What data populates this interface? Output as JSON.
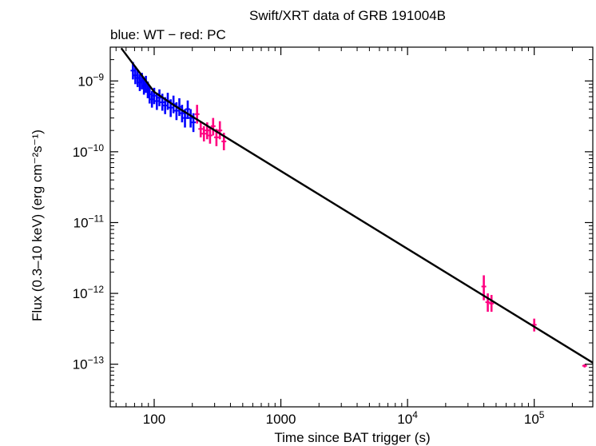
{
  "chart_data": {
    "type": "scatter",
    "title": "Swift/XRT data of GRB 191004B",
    "subtitle": "blue: WT − red: PC",
    "xlabel": "Time since BAT trigger (s)",
    "ylabel": "Flux (0.3–10 keV) (erg cm⁻²s⁻¹)",
    "xscale": "log",
    "yscale": "log",
    "xlim": [
      45,
      290000
    ],
    "ylim": [
      2.5e-14,
      3e-09
    ],
    "grid": false,
    "legend": "none",
    "x_ticks": [
      {
        "value": 100,
        "label": "100"
      },
      {
        "value": 1000,
        "label": "1000"
      },
      {
        "value": 10000,
        "label": "10",
        "exp": "4"
      },
      {
        "value": 100000,
        "label": "10",
        "exp": "5"
      }
    ],
    "y_ticks": [
      {
        "value": 1e-09,
        "label": "10",
        "exp": "−9"
      },
      {
        "value": 1e-10,
        "label": "10",
        "exp": "−10"
      },
      {
        "value": 1e-11,
        "label": "10",
        "exp": "−11"
      },
      {
        "value": 1e-12,
        "label": "10",
        "exp": "−12"
      },
      {
        "value": 1e-13,
        "label": "10",
        "exp": "−13"
      }
    ],
    "series": [
      {
        "color": "#0000ff",
        "points": [
          {
            "x": 68,
            "y": 1.4e-09,
            "ylo": 1.05e-09,
            "yhi": 1.85e-09
          },
          {
            "x": 71,
            "y": 1.2e-09,
            "ylo": 9e-10,
            "yhi": 1.6e-09
          },
          {
            "x": 74,
            "y": 1.1e-09,
            "ylo": 8.2e-10,
            "yhi": 1.45e-09
          },
          {
            "x": 77,
            "y": 9.5e-10,
            "ylo": 7.2e-10,
            "yhi": 1.25e-09
          },
          {
            "x": 80,
            "y": 1e-09,
            "ylo": 7.6e-10,
            "yhi": 1.3e-09
          },
          {
            "x": 83,
            "y": 8.5e-10,
            "ylo": 6.4e-10,
            "yhi": 1.12e-09
          },
          {
            "x": 86,
            "y": 9e-10,
            "ylo": 6.8e-10,
            "yhi": 1.18e-09
          },
          {
            "x": 89,
            "y": 7.5e-10,
            "ylo": 5.7e-10,
            "yhi": 9.8e-10
          },
          {
            "x": 92,
            "y": 6.5e-10,
            "ylo": 4.8e-10,
            "yhi": 8.5e-10
          },
          {
            "x": 96,
            "y": 5.5e-10,
            "ylo": 4.2e-10,
            "yhi": 7.2e-10
          },
          {
            "x": 100,
            "y": 6.2e-10,
            "ylo": 4.7e-10,
            "yhi": 8e-10
          },
          {
            "x": 105,
            "y": 5.2e-10,
            "ylo": 3.9e-10,
            "yhi": 6.8e-10
          },
          {
            "x": 110,
            "y": 5.8e-10,
            "ylo": 4.4e-10,
            "yhi": 7.6e-10
          },
          {
            "x": 116,
            "y": 5e-10,
            "ylo": 3.8e-10,
            "yhi": 6.6e-10
          },
          {
            "x": 122,
            "y": 4.5e-10,
            "ylo": 3.4e-10,
            "yhi": 5.9e-10
          },
          {
            "x": 128,
            "y": 5.2e-10,
            "ylo": 3.9e-10,
            "yhi": 6.8e-10
          },
          {
            "x": 135,
            "y": 4.2e-10,
            "ylo": 3.1e-10,
            "yhi": 5.5e-10
          },
          {
            "x": 142,
            "y": 4.7e-10,
            "ylo": 3.5e-10,
            "yhi": 6.2e-10
          },
          {
            "x": 150,
            "y": 3.8e-10,
            "ylo": 2.8e-10,
            "yhi": 5e-10
          },
          {
            "x": 158,
            "y": 4.3e-10,
            "ylo": 3.2e-10,
            "yhi": 5.7e-10
          },
          {
            "x": 166,
            "y": 3.5e-10,
            "ylo": 2.6e-10,
            "yhi": 4.6e-10
          },
          {
            "x": 175,
            "y": 3e-10,
            "ylo": 2.2e-10,
            "yhi": 4e-10
          },
          {
            "x": 184,
            "y": 4e-10,
            "ylo": 2.9e-10,
            "yhi": 5.3e-10
          },
          {
            "x": 194,
            "y": 3e-10,
            "ylo": 2.2e-10,
            "yhi": 4e-10
          },
          {
            "x": 204,
            "y": 2.6e-10,
            "ylo": 1.9e-10,
            "yhi": 3.5e-10
          }
        ]
      },
      {
        "color": "#ff0080",
        "points": [
          {
            "x": 218,
            "y": 3.4e-10,
            "ylo": 2.5e-10,
            "yhi": 4.6e-10
          },
          {
            "x": 233,
            "y": 2.1e-10,
            "ylo": 1.6e-10,
            "yhi": 2.7e-10
          },
          {
            "x": 247,
            "y": 1.8e-10,
            "ylo": 1.4e-10,
            "yhi": 2.3e-10
          },
          {
            "x": 262,
            "y": 2e-10,
            "ylo": 1.5e-10,
            "yhi": 2.6e-10
          },
          {
            "x": 276,
            "y": 1.7e-10,
            "ylo": 1.3e-10,
            "yhi": 2.2e-10
          },
          {
            "x": 292,
            "y": 2.3e-10,
            "ylo": 1.7e-10,
            "yhi": 3e-10
          },
          {
            "x": 310,
            "y": 1.6e-10,
            "ylo": 1.2e-10,
            "yhi": 2.1e-10
          },
          {
            "x": 330,
            "y": 2e-10,
            "ylo": 1.5e-10,
            "yhi": 2.7e-10
          },
          {
            "x": 355,
            "y": 1.4e-10,
            "ylo": 1.05e-10,
            "yhi": 1.85e-10
          },
          {
            "x": 40000,
            "y": 1.25e-12,
            "ylo": 8e-13,
            "yhi": 1.8e-12
          },
          {
            "x": 43000,
            "y": 7.5e-13,
            "ylo": 5.5e-13,
            "yhi": 1e-12
          },
          {
            "x": 46000,
            "y": 7.2e-13,
            "ylo": 5.5e-13,
            "yhi": 9.5e-13
          },
          {
            "x": 100000,
            "y": 3.6e-13,
            "ylo": 2.9e-13,
            "yhi": 4.4e-13
          },
          {
            "x": 250000,
            "y": 9.5e-14,
            "ylo": 9e-14,
            "yhi": 1e-13
          }
        ]
      }
    ],
    "model": {
      "color": "#000000",
      "points": [
        {
          "x": 55,
          "y": 2.9e-09
        },
        {
          "x": 100,
          "y": 7e-10
        },
        {
          "x": 150,
          "y": 4.3e-10
        },
        {
          "x": 290000,
          "y": 1.05e-13
        }
      ]
    }
  }
}
